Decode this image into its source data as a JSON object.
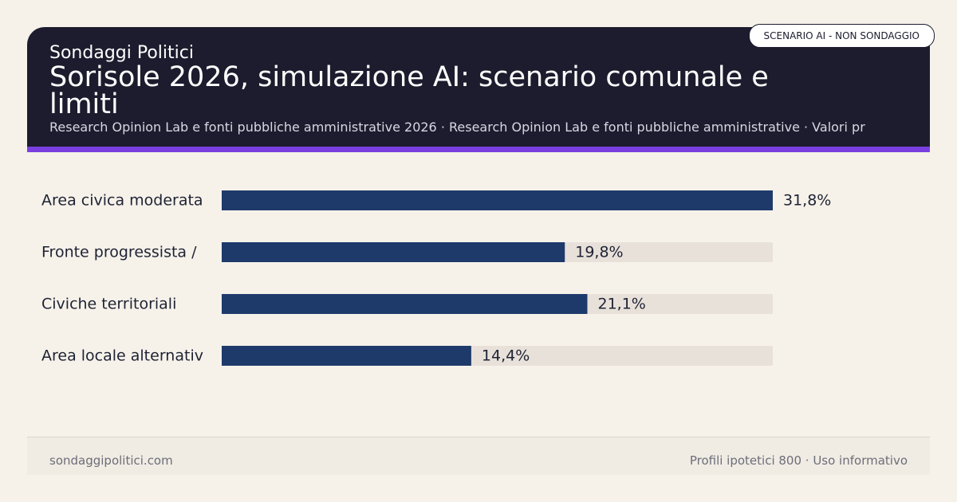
{
  "header": {
    "brand": "Sondaggi Politici",
    "title": "Sorisole 2026, simulazione AI: scenario comunale e limiti",
    "subtitle": "Research Opinion Lab e fonti pubbliche amministrative 2026 · Research Opinion Lab e fonti pubbliche amministrative · Valori pr",
    "badge": "SCENARIO AI - NON SONDAGGIO"
  },
  "colors": {
    "header_bg": "#1c1c2e",
    "accent": "#7a3fe0",
    "bar": "#1e3a6b",
    "track": "#e8e1da",
    "background": "#f6f2ea"
  },
  "chart_data": {
    "type": "bar",
    "orientation": "horizontal",
    "categories": [
      "Area civica moderata",
      "Fronte progressista /",
      "Civiche territoriali",
      "Area locale alternativ"
    ],
    "values": [
      31.8,
      19.8,
      21.1,
      14.4
    ],
    "value_labels": [
      "31,8%",
      "19,8%",
      "21,1%",
      "14,4%"
    ],
    "xlim": [
      0,
      31.8
    ],
    "unit": "%",
    "grid": false,
    "legend": "none"
  },
  "footer": {
    "left": "sondaggipolitici.com",
    "right": "Profili ipotetici 800 · Uso informativo"
  }
}
